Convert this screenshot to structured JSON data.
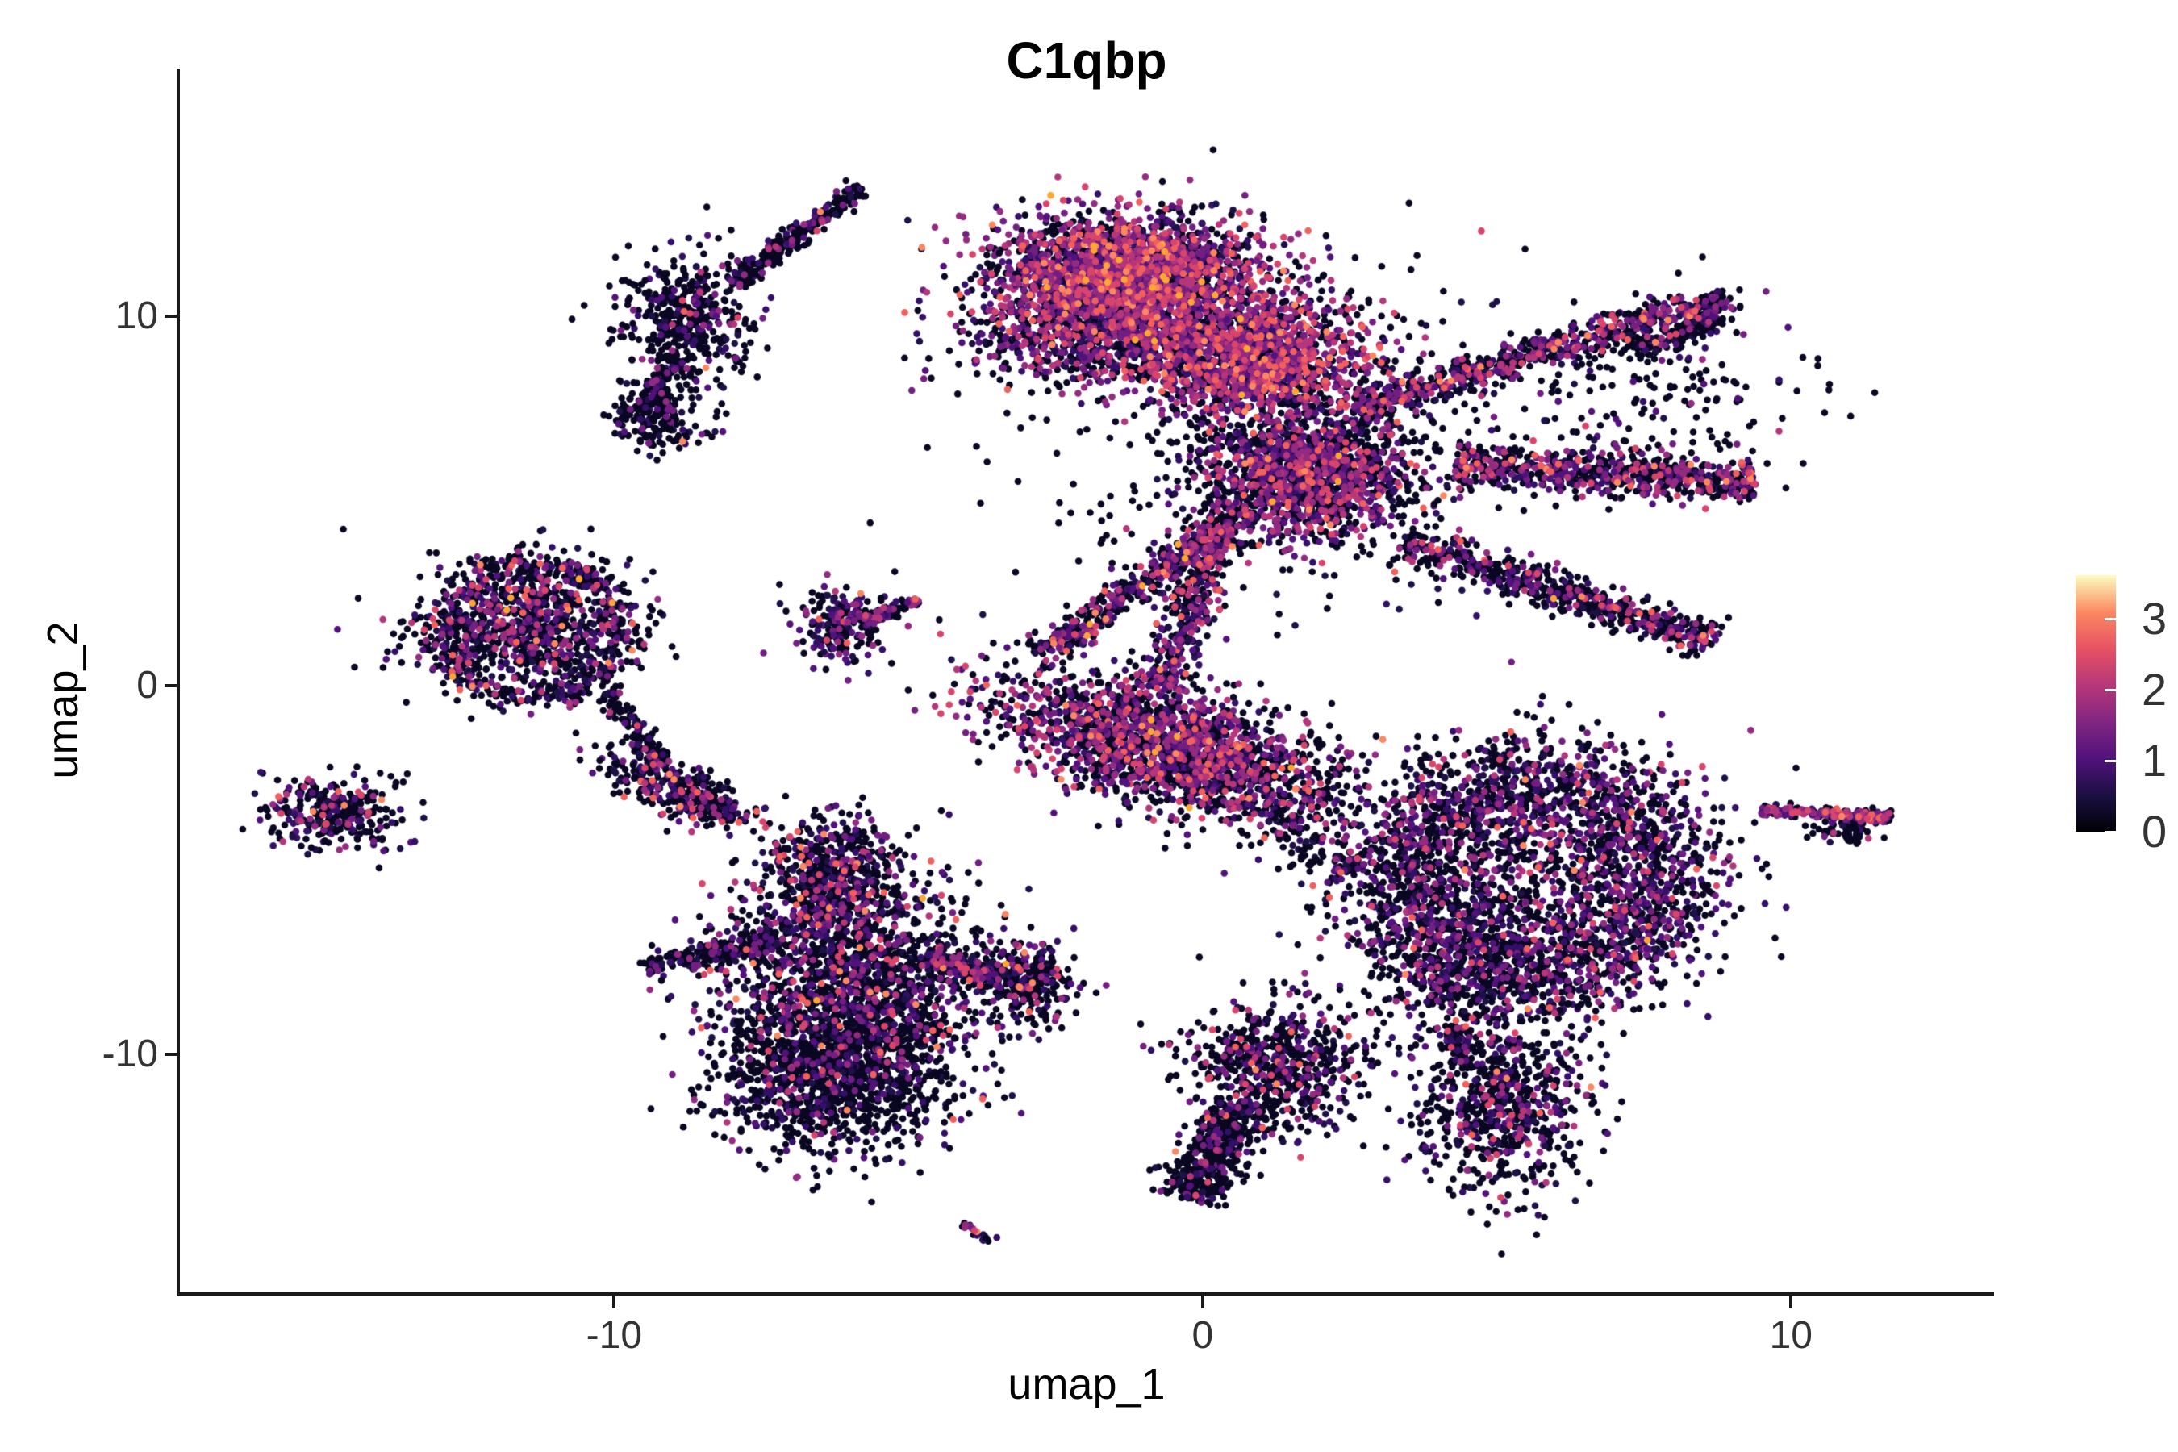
{
  "chart_data": {
    "type": "scatter",
    "title": "C1qbp",
    "xlabel": "umap_1",
    "ylabel": "umap_2",
    "xlim": [
      -17.4,
      13.45
    ],
    "ylim": [
      -16.46,
      16.72
    ],
    "xticks": [
      "-10",
      "0",
      "10"
    ],
    "xtick_values": [
      -10,
      0,
      10
    ],
    "yticks": [
      "10",
      "0",
      "-10"
    ],
    "ytick_values": [
      10,
      0,
      -10
    ],
    "grid": false,
    "background": "#ffffff",
    "axis_color": "#1a1a1a",
    "tick_text_color": "#333333",
    "point_radius_px": 4.3,
    "colorbar": {
      "position": "right",
      "domain": [
        0,
        3.62
      ],
      "ticks": [
        "3",
        "2",
        "1",
        "0"
      ],
      "tick_values": [
        3,
        2,
        1,
        0
      ],
      "colormap": "magma",
      "stops": [
        "#000004",
        "#1c1044",
        "#51127c",
        "#822681",
        "#b73779",
        "#e75263",
        "#fc8961",
        "#fcfdbf"
      ]
    },
    "palette": [
      "#0a0722",
      "#1d1147",
      "#331068",
      "#51127c",
      "#721f81",
      "#932b80",
      "#b5367a",
      "#d8456c",
      "#f1605d",
      "#fb8861",
      "#fca636"
    ],
    "profiles": {
      "bright": [
        0.3,
        0.05,
        0.07,
        0.11,
        0.13,
        0.12,
        0.1,
        0.06,
        0.035,
        0.02,
        0.005
      ],
      "mixed": [
        0.47,
        0.07,
        0.07,
        0.09,
        0.09,
        0.08,
        0.06,
        0.04,
        0.02,
        0.008,
        0.002
      ],
      "darkpurple": [
        0.52,
        0.09,
        0.09,
        0.1,
        0.08,
        0.06,
        0.03,
        0.02,
        0.008,
        0.002,
        0.001
      ],
      "darkaccent": [
        0.63,
        0.08,
        0.07,
        0.06,
        0.05,
        0.04,
        0.03,
        0.02,
        0.012,
        0.006,
        0.002
      ],
      "dark": [
        0.78,
        0.06,
        0.05,
        0.04,
        0.03,
        0.02,
        0.012,
        0.005,
        0.002,
        0.001,
        0.0
      ],
      "colored": [
        0.2,
        0.05,
        0.08,
        0.13,
        0.18,
        0.16,
        0.11,
        0.06,
        0.02,
        0.008,
        0.002
      ]
    },
    "clusters": [
      {
        "name": "topleft-streak",
        "type": "streak",
        "x1": -5.82,
        "y1": 13.5,
        "x2": -8.0,
        "y2": 10.9,
        "w": 0.12,
        "n": 260,
        "profile": "dark"
      },
      {
        "name": "topleft-fan",
        "type": "gauss",
        "cx": -8.75,
        "cy": 9.95,
        "sx": 0.55,
        "sy": 0.85,
        "rot": 0,
        "n": 430,
        "profile": "dark"
      },
      {
        "name": "topleft-tail",
        "type": "streak",
        "x1": -8.9,
        "y1": 8.9,
        "x2": -9.35,
        "y2": 7.8,
        "w": 0.1,
        "n": 60,
        "profile": "dark"
      },
      {
        "name": "topleft-foot",
        "type": "gauss",
        "cx": -9.3,
        "cy": 7.3,
        "sx": 0.38,
        "sy": 0.5,
        "rot": 0,
        "n": 210,
        "profile": "dark"
      },
      {
        "name": "main-left-lobe",
        "type": "gauss",
        "cx": -1.3,
        "cy": 11.1,
        "sx": 1.15,
        "sy": 0.8,
        "rot": 0,
        "n": 2600,
        "profile": "bright"
      },
      {
        "name": "main-lobe-under",
        "type": "gauss",
        "cx": -1.5,
        "cy": 9.3,
        "sx": 1.3,
        "sy": 0.6,
        "rot": 0,
        "n": 800,
        "profile": "mixed"
      },
      {
        "name": "main-core",
        "type": "gauss",
        "cx": 0.9,
        "cy": 8.8,
        "sx": 0.95,
        "sy": 0.8,
        "rot": 0,
        "n": 1500,
        "profile": "bright"
      },
      {
        "name": "main-hub",
        "type": "gauss",
        "cx": 1.8,
        "cy": 5.7,
        "sx": 0.9,
        "sy": 0.8,
        "rot": 0,
        "n": 1400,
        "profile": "mixed"
      },
      {
        "name": "arm-up-right",
        "type": "streak",
        "x1": 2.6,
        "y1": 7.5,
        "x2": 8.3,
        "y2": 10.3,
        "w": 0.22,
        "n": 650,
        "profile": "mixed"
      },
      {
        "name": "arm-hook",
        "type": "streak",
        "x1": 8.6,
        "y1": 10.6,
        "qx": 9.1,
        "qy": 9.8,
        "x2": 7.3,
        "y2": 9.2,
        "w": 0.15,
        "n": 260,
        "profile": "dark"
      },
      {
        "name": "arm-right",
        "type": "streak",
        "x1": 4.3,
        "y1": 6.0,
        "x2": 9.4,
        "y2": 5.5,
        "w": 0.28,
        "n": 700,
        "profile": "mixed"
      },
      {
        "name": "arm-down-right",
        "type": "streak",
        "x1": 3.4,
        "y1": 3.9,
        "x2": 8.7,
        "y2": 1.2,
        "w": 0.24,
        "n": 650,
        "profile": "darkaccent"
      },
      {
        "name": "arm-v-left",
        "type": "streak",
        "x1": 0.8,
        "y1": 4.8,
        "x2": -2.8,
        "y2": 0.8,
        "w": 0.2,
        "n": 480,
        "profile": "mixed"
      },
      {
        "name": "arm-neck",
        "type": "streak",
        "x1": 0.3,
        "y1": 4.4,
        "x2": -0.7,
        "y2": -0.1,
        "w": 0.22,
        "n": 420,
        "profile": "mixed"
      },
      {
        "name": "main-spray",
        "type": "gauss",
        "cx": 1.5,
        "cy": 6.5,
        "sx": 2.2,
        "sy": 2.2,
        "rot": 0,
        "n": 500,
        "profile": "dark"
      },
      {
        "name": "main-spray-ne",
        "type": "gauss",
        "cx": 7.5,
        "cy": 8.0,
        "sx": 1.4,
        "sy": 1.3,
        "rot": 0,
        "n": 220,
        "profile": "dark"
      },
      {
        "name": "fan-core",
        "type": "gauss",
        "cx": -11.5,
        "cy": 1.6,
        "sx": 0.95,
        "sy": 0.85,
        "rot": 0,
        "n": 900,
        "profile": "darkaccent"
      },
      {
        "name": "fan-ring",
        "type": "ring",
        "cx": -11.4,
        "cy": 1.5,
        "rx": 1.5,
        "ry": 1.8,
        "jit": 0.12,
        "n": 430,
        "profile": "darkaccent"
      },
      {
        "name": "fan-tail",
        "type": "streak",
        "x1": -10.1,
        "y1": -0.2,
        "x2": -9.2,
        "y2": -2.1,
        "w": 0.12,
        "n": 110,
        "profile": "dark"
      },
      {
        "name": "fan-foot",
        "type": "gauss",
        "cx": -8.85,
        "cy": -2.85,
        "sx": 0.75,
        "sy": 0.28,
        "rot": -35,
        "n": 380,
        "profile": "darkaccent"
      },
      {
        "name": "far-left-blob",
        "type": "gauss",
        "cx": -14.75,
        "cy": -3.45,
        "sx": 0.6,
        "sy": 0.5,
        "rot": -10,
        "n": 300,
        "profile": "darkaccent"
      },
      {
        "name": "swoosh-blob",
        "type": "gauss",
        "cx": -6.15,
        "cy": 1.65,
        "sx": 0.38,
        "sy": 0.5,
        "rot": 0,
        "n": 210,
        "profile": "darkpurple"
      },
      {
        "name": "swoosh-tail",
        "type": "streak",
        "x1": -5.8,
        "y1": 1.75,
        "x2": -4.8,
        "y2": 2.3,
        "w": 0.09,
        "n": 80,
        "profile": "mixed"
      },
      {
        "name": "dog-head",
        "type": "gauss",
        "cx": -6.3,
        "cy": -5.2,
        "sx": 0.55,
        "sy": 0.85,
        "rot": 0,
        "n": 560,
        "profile": "darkaccent"
      },
      {
        "name": "dog-body",
        "type": "gauss",
        "cx": -5.9,
        "cy": -8.0,
        "sx": 1.15,
        "sy": 1.5,
        "rot": 0,
        "n": 1700,
        "profile": "darkaccent"
      },
      {
        "name": "dog-left-arm",
        "type": "streak",
        "x1": -7.2,
        "y1": -6.9,
        "x2": -9.5,
        "y2": -7.6,
        "w": 0.16,
        "n": 220,
        "profile": "dark"
      },
      {
        "name": "dog-bottom",
        "type": "gauss",
        "cx": -6.3,
        "cy": -10.6,
        "sx": 0.95,
        "sy": 1.05,
        "rot": 0,
        "n": 1100,
        "profile": "dark"
      },
      {
        "name": "dog-right-arm",
        "type": "streak",
        "x1": -4.7,
        "y1": -7.3,
        "x2": -3.4,
        "y2": -7.9,
        "w": 0.14,
        "n": 200,
        "profile": "darkaccent"
      },
      {
        "name": "dog-right-blob",
        "type": "gauss",
        "cx": -3.0,
        "cy": -8.0,
        "sx": 0.42,
        "sy": 0.55,
        "rot": 0,
        "n": 270,
        "profile": "darkaccent"
      },
      {
        "name": "central-bean",
        "type": "gauss",
        "cx": -0.6,
        "cy": -1.6,
        "sx": 1.55,
        "sy": 0.75,
        "rot": -28,
        "n": 2000,
        "profile": "mixed"
      },
      {
        "name": "central-trail",
        "type": "streak",
        "x1": 0.0,
        "y1": -2.4,
        "x2": 2.6,
        "y2": -5.0,
        "w": 0.4,
        "n": 200,
        "profile": "dark"
      },
      {
        "name": "ring-right",
        "type": "ring",
        "cx": 5.6,
        "cy": -5.3,
        "rx": 2.2,
        "ry": 2.6,
        "jit": 0.3,
        "n": 2300,
        "profile": "darkpurple"
      },
      {
        "name": "ring-right-fill",
        "type": "gauss",
        "cx": 5.6,
        "cy": -5.3,
        "sx": 1.5,
        "sy": 1.8,
        "rot": 0,
        "n": 800,
        "profile": "darkaccent"
      },
      {
        "name": "ring-spray",
        "type": "gauss",
        "cx": 4.6,
        "cy": -7.7,
        "sx": 1.1,
        "sy": 0.9,
        "rot": 0,
        "n": 280,
        "profile": "dark"
      },
      {
        "name": "right-streak",
        "type": "streak",
        "x1": 9.5,
        "y1": -3.38,
        "x2": 11.7,
        "y2": -3.56,
        "w": 0.07,
        "n": 230,
        "profile": "colored"
      },
      {
        "name": "right-streak-dark",
        "type": "gauss",
        "cx": 10.9,
        "cy": -3.95,
        "sx": 0.35,
        "sy": 0.16,
        "rot": 0,
        "n": 60,
        "profile": "dark"
      },
      {
        "name": "comma-head",
        "type": "gauss",
        "cx": 1.3,
        "cy": -10.3,
        "sx": 0.75,
        "sy": 0.85,
        "rot": 0,
        "n": 650,
        "profile": "darkaccent"
      },
      {
        "name": "comma-tail",
        "type": "streak",
        "x1": 0.7,
        "y1": -11.4,
        "x2": -0.3,
        "y2": -13.9,
        "w": 0.3,
        "n": 500,
        "profile": "dark"
      },
      {
        "name": "bottom-right-cluster",
        "type": "gauss",
        "cx": 5.1,
        "cy": -11.3,
        "sx": 0.75,
        "sy": 1.2,
        "rot": 0,
        "n": 700,
        "profile": "darkaccent"
      },
      {
        "name": "bottom-right-tail",
        "type": "streak",
        "x1": 4.25,
        "y1": -9.2,
        "x2": 4.5,
        "y2": -10.4,
        "w": 0.12,
        "n": 90,
        "profile": "dark"
      },
      {
        "name": "tiny-streak",
        "type": "streak",
        "x1": -4.05,
        "y1": -14.55,
        "x2": -3.6,
        "y2": -15.1,
        "w": 0.06,
        "n": 24,
        "profile": "darkpurple"
      }
    ]
  }
}
